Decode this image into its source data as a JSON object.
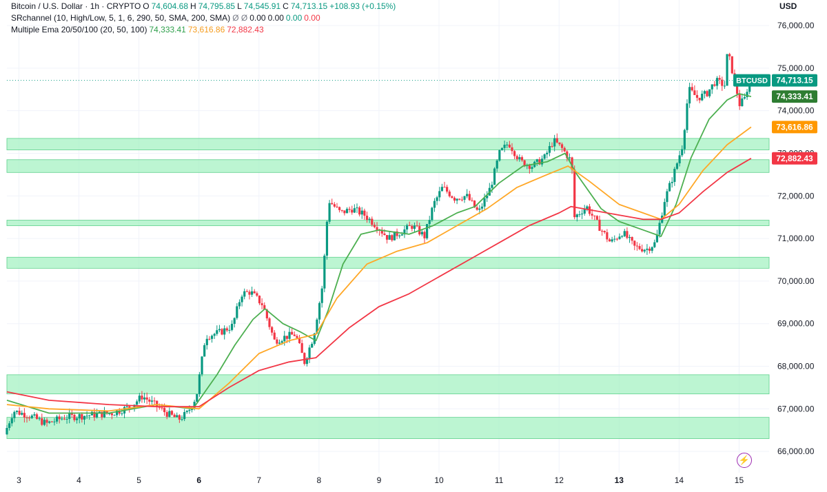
{
  "header": {
    "symbol_title": "Bitcoin / U.S. Dollar · 1h · CRYPTO",
    "ohlc": [
      {
        "label": "O",
        "value": "74,604.68"
      },
      {
        "label": "H",
        "value": "74,795.85"
      },
      {
        "label": "L",
        "value": "74,545.91"
      },
      {
        "label": "C",
        "value": "74,713.15"
      }
    ],
    "change": "+108.93 (+0.15%)",
    "indicator1_name": "SRchannel (10, High/Low, 5, 1, 6, 290, 50, SMA, 200, SMA)",
    "indicator1_symbols": "Ø Ø",
    "indicator1_values": [
      "0.00",
      "0.00",
      "0.00",
      "0.00"
    ],
    "indicator2_name": "Multiple Ema 20/50/100 (20, 50, 100)",
    "indicator2_values": [
      "74,333.41",
      "73,616.86",
      "72,882.43"
    ]
  },
  "axis": {
    "currency_label": "USD"
  },
  "colors": {
    "up": "#089981",
    "down": "#f23645",
    "ema20": "#4caf50",
    "ema50": "#ffa726",
    "ema100": "#f23645",
    "zone": "#a5f2c3",
    "zone_border": "#5ed08c",
    "last_price_tag": "#089981"
  },
  "chart_data": {
    "type": "candlestick",
    "title": "Bitcoin / U.S. Dollar · 1h · CRYPTO",
    "ylim": [
      65500,
      76600
    ],
    "y_ticks": [
      66000,
      67000,
      68000,
      69000,
      70000,
      71000,
      72000,
      73000,
      74000,
      75000,
      76000
    ],
    "y_tick_labels": [
      "66,000.00",
      "67,000.00",
      "68,000.00",
      "69,000.00",
      "70,000.00",
      "71,000.00",
      "72,000.00",
      "73,000.00",
      "74,000.00",
      "75,000.00",
      "76,000.00"
    ],
    "x_day_range": [
      2.8,
      15.5
    ],
    "x_ticks": [
      3,
      4,
      5,
      6,
      7,
      8,
      9,
      10,
      11,
      12,
      13,
      14,
      15
    ],
    "x_tick_labels": [
      "3",
      "4",
      "5",
      "6",
      "7",
      "8",
      "9",
      "10",
      "11",
      "12",
      "13",
      "14",
      "15"
    ],
    "x_tick_bold": [
      "6",
      "13"
    ],
    "price_path": [
      [
        2.8,
        66400
      ],
      [
        2.95,
        66950
      ],
      [
        3.2,
        66850
      ],
      [
        3.5,
        66650
      ],
      [
        3.8,
        66800
      ],
      [
        4.2,
        66850
      ],
      [
        4.6,
        66900
      ],
      [
        4.9,
        67050
      ],
      [
        5.1,
        67300
      ],
      [
        5.3,
        67100
      ],
      [
        5.5,
        66900
      ],
      [
        5.7,
        66750
      ],
      [
        5.85,
        66900
      ],
      [
        6.0,
        67300
      ],
      [
        6.15,
        68700
      ],
      [
        6.4,
        68800
      ],
      [
        6.6,
        68950
      ],
      [
        6.75,
        69700
      ],
      [
        6.9,
        69750
      ],
      [
        7.1,
        69450
      ],
      [
        7.3,
        68600
      ],
      [
        7.5,
        68700
      ],
      [
        7.65,
        68750
      ],
      [
        7.8,
        68100
      ],
      [
        7.95,
        68700
      ],
      [
        8.1,
        69900
      ],
      [
        8.2,
        71900
      ],
      [
        8.4,
        71600
      ],
      [
        8.6,
        71700
      ],
      [
        8.8,
        71550
      ],
      [
        9.0,
        71300
      ],
      [
        9.2,
        71000
      ],
      [
        9.4,
        71150
      ],
      [
        9.6,
        71300
      ],
      [
        9.8,
        71050
      ],
      [
        9.95,
        71800
      ],
      [
        10.1,
        72200
      ],
      [
        10.3,
        71950
      ],
      [
        10.5,
        72000
      ],
      [
        10.7,
        71600
      ],
      [
        10.9,
        72200
      ],
      [
        11.05,
        73000
      ],
      [
        11.2,
        73250
      ],
      [
        11.4,
        72800
      ],
      [
        11.6,
        72700
      ],
      [
        11.8,
        72900
      ],
      [
        11.95,
        73300
      ],
      [
        12.1,
        73100
      ],
      [
        12.25,
        72800
      ],
      [
        12.3,
        71500
      ],
      [
        12.5,
        71750
      ],
      [
        12.7,
        71300
      ],
      [
        12.9,
        70900
      ],
      [
        13.1,
        71150
      ],
      [
        13.3,
        70800
      ],
      [
        13.5,
        70750
      ],
      [
        13.65,
        70900
      ],
      [
        13.8,
        71900
      ],
      [
        13.95,
        72500
      ],
      [
        14.1,
        73200
      ],
      [
        14.2,
        74500
      ],
      [
        14.35,
        74300
      ],
      [
        14.5,
        74400
      ],
      [
        14.65,
        74700
      ],
      [
        14.8,
        74600
      ],
      [
        14.85,
        75400
      ],
      [
        14.95,
        74800
      ],
      [
        15.05,
        74150
      ],
      [
        15.15,
        74300
      ],
      [
        15.2,
        74713
      ]
    ],
    "series": [
      {
        "name": "EMA 20",
        "last_value": 74333.41,
        "points": [
          [
            2.8,
            67200
          ],
          [
            3.5,
            66900
          ],
          [
            4.5,
            66900
          ],
          [
            5.3,
            67100
          ],
          [
            5.9,
            67000
          ],
          [
            6.3,
            67800
          ],
          [
            6.6,
            68500
          ],
          [
            6.9,
            69100
          ],
          [
            7.1,
            69350
          ],
          [
            7.4,
            69000
          ],
          [
            7.7,
            68800
          ],
          [
            7.95,
            68600
          ],
          [
            8.15,
            69300
          ],
          [
            8.4,
            70400
          ],
          [
            8.7,
            71100
          ],
          [
            9.0,
            71200
          ],
          [
            9.5,
            71100
          ],
          [
            9.9,
            71300
          ],
          [
            10.3,
            71600
          ],
          [
            10.6,
            71750
          ],
          [
            11.0,
            72300
          ],
          [
            11.4,
            72700
          ],
          [
            11.8,
            72800
          ],
          [
            12.1,
            73000
          ],
          [
            12.3,
            72500
          ],
          [
            12.7,
            71700
          ],
          [
            13.0,
            71400
          ],
          [
            13.4,
            71200
          ],
          [
            13.7,
            71050
          ],
          [
            13.95,
            71800
          ],
          [
            14.2,
            72900
          ],
          [
            14.5,
            73800
          ],
          [
            14.8,
            74250
          ],
          [
            15.0,
            74400
          ],
          [
            15.2,
            74333
          ]
        ]
      },
      {
        "name": "EMA 50",
        "last_value": 73616.86,
        "points": [
          [
            2.8,
            67100
          ],
          [
            3.5,
            67000
          ],
          [
            4.5,
            66950
          ],
          [
            5.3,
            67100
          ],
          [
            6.0,
            67000
          ],
          [
            6.5,
            67600
          ],
          [
            7.0,
            68300
          ],
          [
            7.5,
            68600
          ],
          [
            7.95,
            68750
          ],
          [
            8.3,
            69600
          ],
          [
            8.8,
            70400
          ],
          [
            9.3,
            70700
          ],
          [
            9.8,
            70900
          ],
          [
            10.3,
            71300
          ],
          [
            10.8,
            71700
          ],
          [
            11.3,
            72200
          ],
          [
            11.8,
            72500
          ],
          [
            12.15,
            72700
          ],
          [
            12.5,
            72350
          ],
          [
            13.0,
            71800
          ],
          [
            13.4,
            71600
          ],
          [
            13.7,
            71450
          ],
          [
            14.0,
            71800
          ],
          [
            14.4,
            72600
          ],
          [
            14.8,
            73200
          ],
          [
            15.2,
            73617
          ]
        ]
      },
      {
        "name": "EMA 100",
        "last_value": 72882.43,
        "points": [
          [
            2.8,
            67400
          ],
          [
            3.5,
            67200
          ],
          [
            4.5,
            67100
          ],
          [
            5.3,
            67050
          ],
          [
            6.0,
            67050
          ],
          [
            6.5,
            67500
          ],
          [
            7.0,
            67900
          ],
          [
            7.5,
            68100
          ],
          [
            7.95,
            68200
          ],
          [
            8.5,
            68900
          ],
          [
            9.0,
            69400
          ],
          [
            9.5,
            69700
          ],
          [
            10.0,
            70100
          ],
          [
            10.5,
            70500
          ],
          [
            11.0,
            70900
          ],
          [
            11.5,
            71300
          ],
          [
            12.0,
            71600
          ],
          [
            12.2,
            71750
          ],
          [
            12.6,
            71650
          ],
          [
            13.0,
            71550
          ],
          [
            13.4,
            71450
          ],
          [
            13.7,
            71450
          ],
          [
            14.0,
            71600
          ],
          [
            14.4,
            72100
          ],
          [
            14.8,
            72550
          ],
          [
            15.2,
            72882
          ]
        ]
      }
    ],
    "sr_zones": [
      [
        73080,
        73350
      ],
      [
        72550,
        72850
      ],
      [
        71300,
        71430
      ],
      [
        70300,
        70560
      ],
      [
        67350,
        67800
      ],
      [
        66300,
        66800
      ]
    ],
    "last_price": 74713.15,
    "price_tags": [
      {
        "label": "BTCUSD",
        "value": "74,713.15",
        "price": 74713.15,
        "color": "#089981"
      },
      {
        "label": "",
        "value": "74,333.41",
        "price": 74333.41,
        "color": "#2e7d32"
      },
      {
        "label": "",
        "value": "73,616.86",
        "price": 73616.86,
        "color": "#ff9800"
      },
      {
        "label": "",
        "value": "72,882.43",
        "price": 72882.43,
        "color": "#f23645"
      }
    ]
  }
}
